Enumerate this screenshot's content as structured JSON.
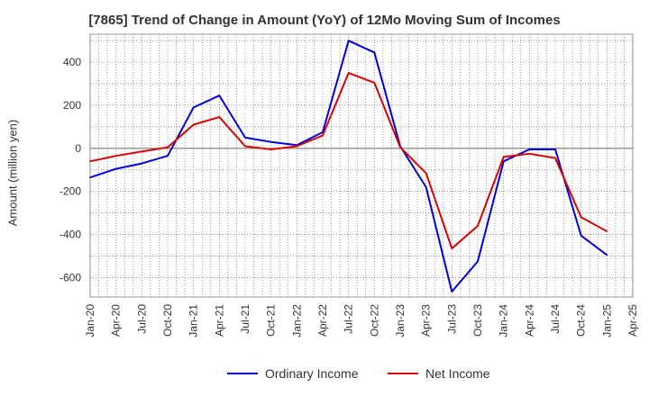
{
  "chart_data": {
    "type": "line",
    "title": "[7865]  Trend of Change in Amount (YoY) of 12Mo Moving Sum of Incomes",
    "xlabel": "",
    "ylabel": "Amount (million yen)",
    "x_tick_labels": [
      "Jan-20",
      "Apr-20",
      "Jul-20",
      "Oct-20",
      "Jan-21",
      "Apr-21",
      "Jul-21",
      "Oct-21",
      "Jan-22",
      "Apr-22",
      "Jul-22",
      "Oct-22",
      "Jan-23",
      "Apr-23",
      "Jul-23",
      "Oct-23",
      "Jan-24",
      "Apr-24",
      "Jul-24",
      "Oct-24",
      "Jan-25",
      "Apr-25"
    ],
    "y_ticks": [
      400,
      200,
      0,
      -200,
      -400,
      -600
    ],
    "ylim": [
      -690,
      530
    ],
    "grid": true,
    "legend_position": "bottom",
    "x": [
      "Jan-20",
      "Feb-20",
      "Apr-20",
      "May-20",
      "Jul-20",
      "Aug-20",
      "Oct-20",
      "Nov-20",
      "Jan-21",
      "Feb-21",
      "Apr-21",
      "May-21",
      "Jul-21",
      "Aug-21",
      "Oct-21",
      "Nov-21",
      "Jan-22",
      "Feb-22",
      "Apr-22",
      "May-22",
      "Jul-22",
      "Aug-22",
      "Oct-22",
      "Nov-22",
      "Jan-23",
      "Feb-23",
      "Apr-23",
      "May-23",
      "Jul-23",
      "Aug-23",
      "Oct-23",
      "Nov-23",
      "Jan-24",
      "Feb-24",
      "Apr-24",
      "May-24",
      "Jul-24",
      "Aug-24",
      "Oct-24",
      "Nov-24",
      "Jan-25"
    ],
    "series": [
      {
        "name": "Ordinary Income",
        "color": "#0000dd",
        "points": [
          [
            "Jan-20",
            -135
          ],
          [
            "Apr-20",
            -95
          ],
          [
            "Jul-20",
            -70
          ],
          [
            "Oct-20",
            -35
          ],
          [
            "Jan-21",
            190
          ],
          [
            "Apr-21",
            245
          ],
          [
            "Jul-21",
            50
          ],
          [
            "Oct-21",
            30
          ],
          [
            "Jan-22",
            15
          ],
          [
            "Apr-22",
            75
          ],
          [
            "Jul-22",
            500
          ],
          [
            "Oct-22",
            445
          ],
          [
            "Jan-23",
            10
          ],
          [
            "Apr-23",
            -180
          ],
          [
            "Jul-23",
            -665
          ],
          [
            "Oct-23",
            -525
          ],
          [
            "Jan-24",
            -60
          ],
          [
            "Apr-24",
            -5
          ],
          [
            "Jul-24",
            -5
          ],
          [
            "Oct-24",
            -405
          ],
          [
            "Jan-25",
            -495
          ]
        ]
      },
      {
        "name": "Net Income",
        "color": "#dd0000",
        "points": [
          [
            "Jan-20",
            -60
          ],
          [
            "Apr-20",
            -35
          ],
          [
            "Jul-20",
            -15
          ],
          [
            "Oct-20",
            5
          ],
          [
            "Jan-21",
            110
          ],
          [
            "Apr-21",
            145
          ],
          [
            "Jul-21",
            10
          ],
          [
            "Oct-21",
            -5
          ],
          [
            "Jan-22",
            10
          ],
          [
            "Apr-22",
            60
          ],
          [
            "Jul-22",
            350
          ],
          [
            "Oct-22",
            305
          ],
          [
            "Jan-23",
            5
          ],
          [
            "Apr-23",
            -115
          ],
          [
            "Jul-23",
            -465
          ],
          [
            "Oct-23",
            -360
          ],
          [
            "Jan-24",
            -40
          ],
          [
            "Apr-24",
            -25
          ],
          [
            "Jul-24",
            -45
          ],
          [
            "Oct-24",
            -320
          ],
          [
            "Jan-25",
            -385
          ]
        ]
      }
    ]
  }
}
